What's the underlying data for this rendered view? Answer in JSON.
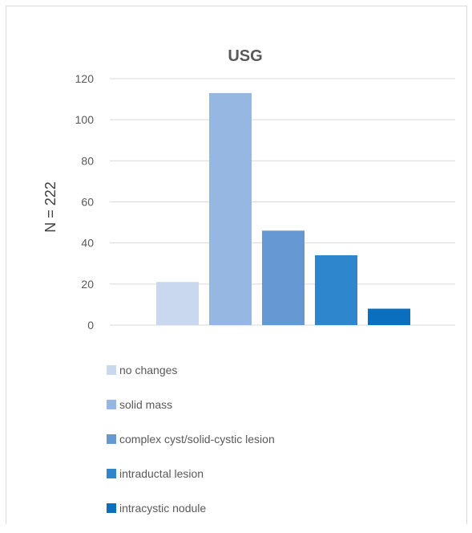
{
  "chart_data": {
    "type": "bar",
    "title": "USG",
    "ylabel": "N = 222",
    "xlabel": "",
    "ylim": [
      0,
      120
    ],
    "yticks": [
      0,
      20,
      40,
      60,
      80,
      100,
      120
    ],
    "grid": true,
    "legend_position": "bottom-left",
    "series": [
      {
        "name": "no changes",
        "value": 21,
        "color": "#c9d7ef"
      },
      {
        "name": "solid mass",
        "value": 113,
        "color": "#95b7e1"
      },
      {
        "name": "complex cyst/solid-cystic lesion",
        "value": 46,
        "color": "#6699d3"
      },
      {
        "name": "intraductal lesion",
        "value": 34,
        "color": "#2e86cc"
      },
      {
        "name": "intracystic nodule",
        "value": 8,
        "color": "#0a6fbf"
      }
    ]
  }
}
